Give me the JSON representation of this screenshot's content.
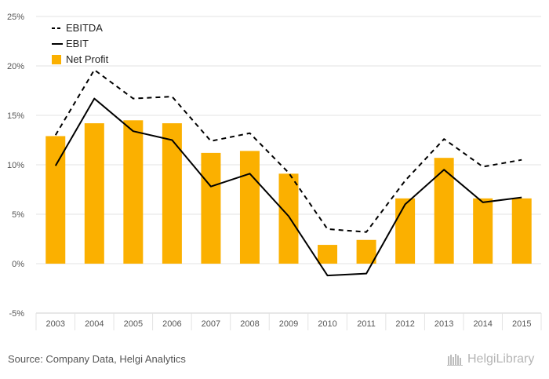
{
  "chart_data": {
    "type": "bar",
    "categories": [
      "2003",
      "2004",
      "2005",
      "2006",
      "2007",
      "2008",
      "2009",
      "2010",
      "2011",
      "2012",
      "2013",
      "2014",
      "2015"
    ],
    "series": [
      {
        "name": "EBITDA",
        "kind": "line",
        "style": "dashed",
        "color": "#000000",
        "values": [
          13.0,
          19.6,
          16.7,
          16.9,
          12.4,
          13.2,
          9.2,
          3.5,
          3.2,
          8.4,
          12.6,
          9.8,
          10.5
        ]
      },
      {
        "name": "EBIT",
        "kind": "line",
        "style": "solid",
        "color": "#000000",
        "values": [
          9.9,
          16.7,
          13.4,
          12.5,
          7.8,
          9.1,
          4.8,
          -1.2,
          -1.0,
          6.0,
          9.5,
          6.2,
          6.7
        ]
      },
      {
        "name": "Net Profit",
        "kind": "bar",
        "color": "#fbb000",
        "values": [
          12.9,
          14.2,
          14.5,
          14.2,
          11.2,
          11.4,
          9.1,
          1.9,
          2.4,
          6.6,
          10.7,
          6.6,
          6.6
        ]
      }
    ],
    "yticks": [
      -5,
      0,
      5,
      10,
      15,
      20,
      25
    ],
    "ytick_labels": [
      "-5%",
      "0%",
      "5%",
      "10%",
      "15%",
      "20%",
      "25%"
    ],
    "ylim": [
      -5,
      25
    ],
    "grid": true,
    "legend_position": "top-left"
  },
  "footer": {
    "source": "Source: Company Data, Helgi Analytics",
    "logo_text": "HelgiLibrary"
  }
}
